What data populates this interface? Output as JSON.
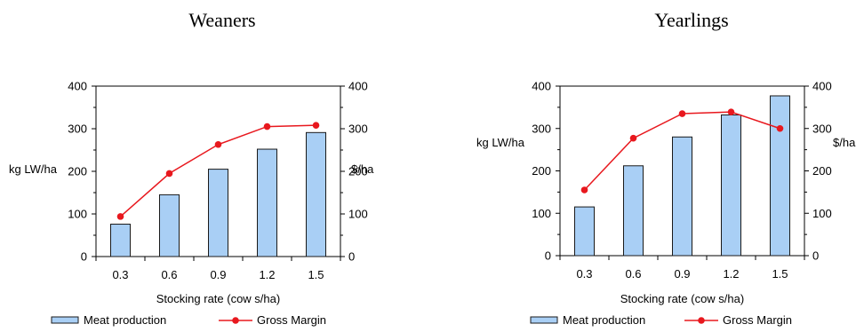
{
  "colors": {
    "bar_fill": "#a9cff5",
    "bar_stroke": "#1a1a1a",
    "line": "#e8181e",
    "marker": "#e8181e",
    "axis": "#000000"
  },
  "chart_data": [
    {
      "type": "bar+line",
      "title": "Weaners",
      "xlabel": "Stocking rate (cow s/ha)",
      "ylabel_left": "kg LW/ha",
      "ylabel_right": "$/ha",
      "categories": [
        "0.3",
        "0.6",
        "0.9",
        "1.2",
        "1.5"
      ],
      "ylim_left": [
        0,
        400
      ],
      "ylim_right": [
        0,
        400
      ],
      "yticks_left": [
        "0",
        "100",
        "200",
        "300",
        "400"
      ],
      "yticks_right": [
        "0",
        "100",
        "200",
        "300",
        "400"
      ],
      "grid": false,
      "legend_position": "bottom",
      "series": [
        {
          "name": "Meat production",
          "kind": "bar",
          "axis": "left",
          "values": [
            76,
            145,
            205,
            252,
            291
          ]
        },
        {
          "name": "Gross Margin",
          "kind": "line",
          "axis": "right",
          "values": [
            94,
            195,
            263,
            305,
            308
          ]
        }
      ]
    },
    {
      "type": "bar+line",
      "title": "Yearlings",
      "xlabel": "Stocking rate (cow s/ha)",
      "ylabel_left": "kg LW/ha",
      "ylabel_right": "$/ha",
      "categories": [
        "0.3",
        "0.6",
        "0.9",
        "1.2",
        "1.5"
      ],
      "ylim_left": [
        0,
        400
      ],
      "ylim_right": [
        0,
        400
      ],
      "yticks_left": [
        "0",
        "100",
        "200",
        "300",
        "400"
      ],
      "yticks_right": [
        "0",
        "100",
        "200",
        "300",
        "400"
      ],
      "grid": false,
      "legend_position": "bottom",
      "series": [
        {
          "name": "Meat production",
          "kind": "bar",
          "axis": "left",
          "values": [
            115,
            212,
            280,
            332,
            377
          ]
        },
        {
          "name": "Gross Margin",
          "kind": "line",
          "axis": "right",
          "values": [
            155,
            277,
            335,
            339,
            300
          ]
        }
      ]
    }
  ]
}
